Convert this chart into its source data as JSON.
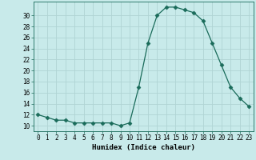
{
  "x": [
    0,
    1,
    2,
    3,
    4,
    5,
    6,
    7,
    8,
    9,
    10,
    11,
    12,
    13,
    14,
    15,
    16,
    17,
    18,
    19,
    20,
    21,
    22,
    23
  ],
  "y": [
    12,
    11.5,
    11,
    11,
    10.5,
    10.5,
    10.5,
    10.5,
    10.5,
    10,
    10.5,
    17,
    25,
    30,
    31.5,
    31.5,
    31,
    30.5,
    29,
    25,
    21,
    17,
    15,
    13.5
  ],
  "line_color": "#1a6b5a",
  "marker": "D",
  "marker_size": 2.5,
  "bg_color": "#c8eaea",
  "grid_color": "#b0d4d4",
  "xlabel": "Humidex (Indice chaleur)",
  "xlim": [
    -0.5,
    23.5
  ],
  "ylim": [
    9,
    32.5
  ],
  "yticks": [
    10,
    12,
    14,
    16,
    18,
    20,
    22,
    24,
    26,
    28,
    30
  ],
  "xticks": [
    0,
    1,
    2,
    3,
    4,
    5,
    6,
    7,
    8,
    9,
    10,
    11,
    12,
    13,
    14,
    15,
    16,
    17,
    18,
    19,
    20,
    21,
    22,
    23
  ],
  "label_fontsize": 6.5,
  "tick_fontsize": 5.5
}
